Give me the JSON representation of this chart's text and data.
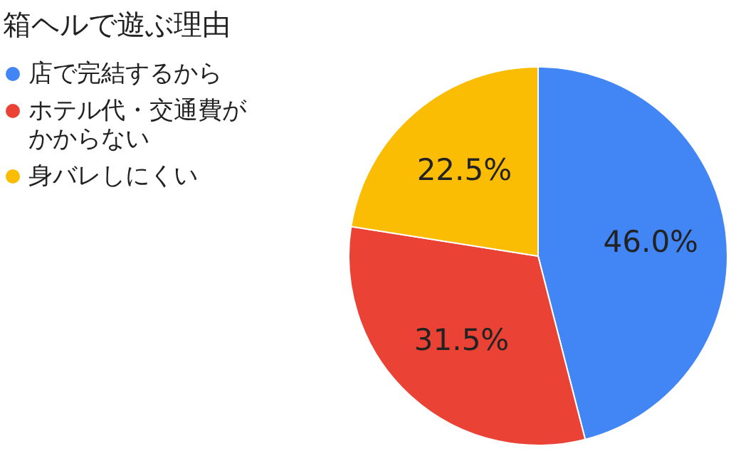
{
  "chart_data": {
    "type": "pie",
    "title": "箱ヘルで遊ぶ理由",
    "categories": [
      "店で完結するから",
      "ホテル代・交通費がかからない",
      "身バレしにくい"
    ],
    "values": [
      46.0,
      31.5,
      22.5
    ],
    "colors": [
      "#4285f4",
      "#ea4335",
      "#fbbc04"
    ],
    "value_labels": [
      "46.0%",
      "31.5%",
      "22.5%"
    ],
    "legend": "top left"
  }
}
